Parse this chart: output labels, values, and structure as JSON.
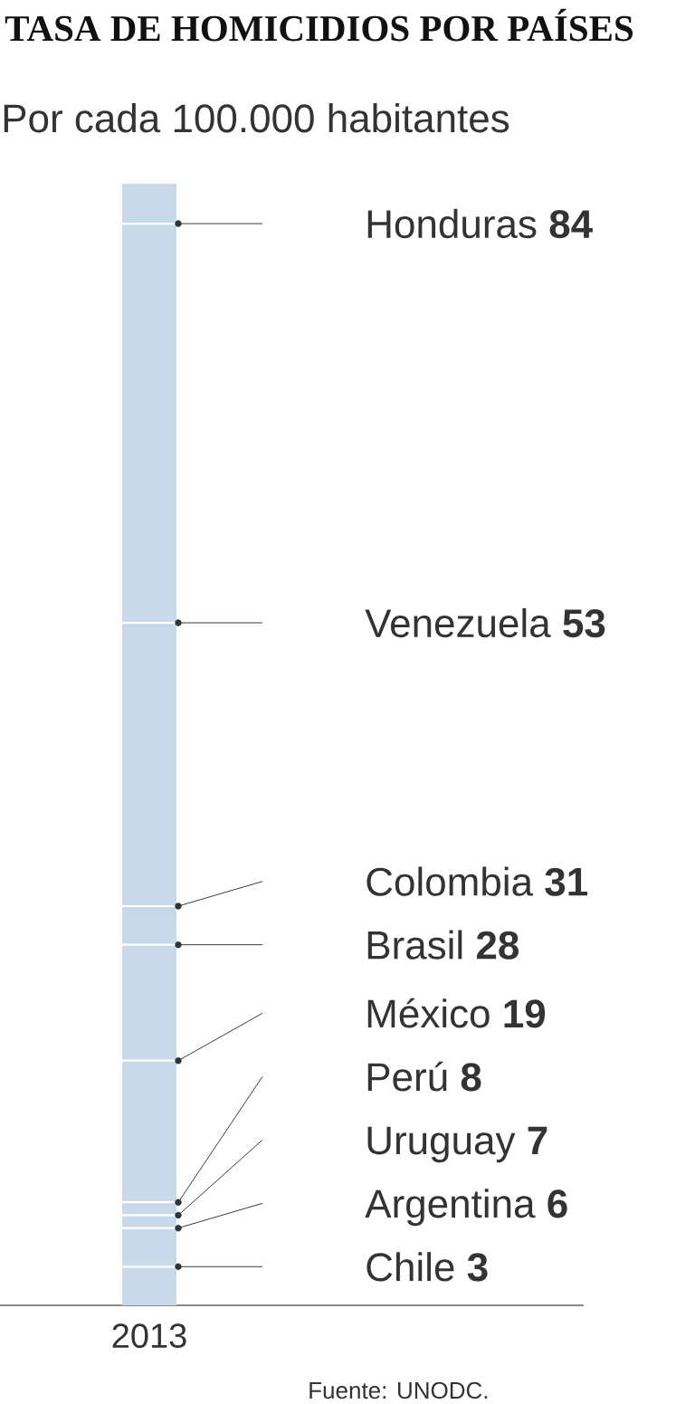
{
  "chart_data": {
    "type": "other",
    "title": "TASA DE HOMICIDIOS POR PAÍSES",
    "subtitle": "Por cada 100.000 habitantes",
    "xlabel": "2013",
    "categories": [
      "Honduras",
      "Venezuela",
      "Colombia",
      "Brasil",
      "México",
      "Perú",
      "Uruguay",
      "Argentina",
      "Chile"
    ],
    "values": [
      84,
      53,
      31,
      28,
      19,
      8,
      7,
      6,
      3
    ],
    "color": "#333333",
    "data_labels": true,
    "annotations": [
      "Fuente: UNODC."
    ]
  }
}
